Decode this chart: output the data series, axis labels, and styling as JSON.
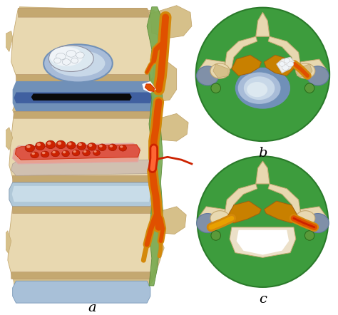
{
  "figure_width": 4.74,
  "figure_height": 4.42,
  "dpi": 100,
  "background_color": "#ffffff",
  "label_a": "a",
  "label_b": "b",
  "label_c": "c",
  "label_fontsize": 14,
  "green_bg": "#3d9c3d",
  "bone_main": "#d6c08a",
  "bone_light": "#e8d8b0",
  "bone_shadow": "#c4a870",
  "bone_dark": "#b8956a",
  "disc_blue_outer": "#7090b8",
  "disc_blue_inner": "#a8bcd8",
  "disc_blue_center": "#c8d8e8",
  "nerve_yellow": "#d4880a",
  "nerve_orange": "#e05000",
  "lig_green": "#78aa50",
  "nucleus_white": "#dce8f0",
  "nucleus_highlight": "#f0f4f8",
  "vessel_red": "#cc2200",
  "vessel_pink": "#e8a090",
  "vessel_dark": "#991100",
  "small_green": "#5a9a3a",
  "canal_yellow": "#c88000",
  "white_herniation": "#f0f0f0",
  "annulus_dark": "#1a2a3a",
  "grey_blue": "#8090a8"
}
